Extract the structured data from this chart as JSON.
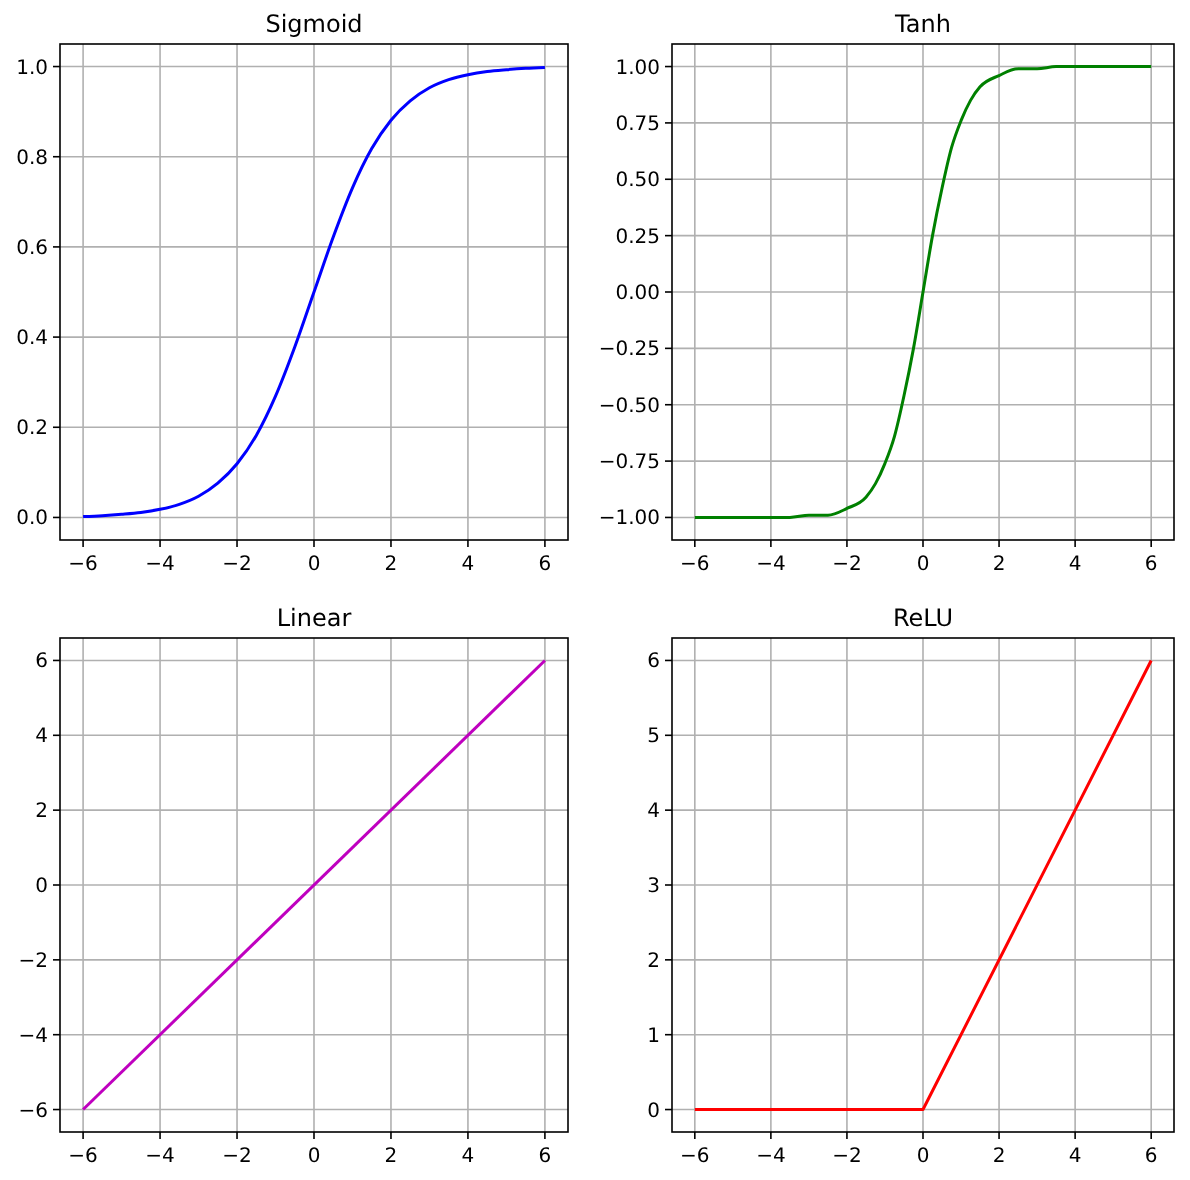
{
  "chart_data": [
    {
      "type": "line",
      "title": "Sigmoid",
      "x": [
        -6,
        -5.5,
        -5,
        -4.5,
        -4,
        -3.5,
        -3,
        -2.5,
        -2,
        -1.5,
        -1,
        -0.5,
        0,
        0.5,
        1,
        1.5,
        2,
        2.5,
        3,
        3.5,
        4,
        4.5,
        5,
        5.5,
        6
      ],
      "series": [
        {
          "color": "#0000ff",
          "values": [
            0.002,
            0.004,
            0.007,
            0.011,
            0.018,
            0.029,
            0.047,
            0.076,
            0.119,
            0.182,
            0.269,
            0.378,
            0.5,
            0.622,
            0.731,
            0.818,
            0.881,
            0.924,
            0.953,
            0.971,
            0.982,
            0.989,
            0.993,
            0.996,
            0.998
          ]
        }
      ],
      "xlim": [
        -6.6,
        6.6
      ],
      "ylim": [
        -0.05,
        1.05
      ],
      "grid": true,
      "xticks": [
        {
          "value": -6,
          "label": "−6"
        },
        {
          "value": -4,
          "label": "−4"
        },
        {
          "value": -2,
          "label": "−2"
        },
        0,
        2,
        4,
        6
      ],
      "yticks": [
        {
          "value": 0,
          "label": "0.0"
        },
        {
          "value": 0.2,
          "label": "0.2"
        },
        {
          "value": 0.4,
          "label": "0.4"
        },
        {
          "value": 0.6,
          "label": "0.6"
        },
        {
          "value": 0.8,
          "label": "0.8"
        },
        {
          "value": 1,
          "label": "1.0"
        }
      ]
    },
    {
      "type": "line",
      "title": "Tanh",
      "x": [
        -6,
        -5,
        -4,
        -3.5,
        -3,
        -2.5,
        -2,
        -1.5,
        -1.25,
        -1,
        -0.75,
        -0.5,
        -0.25,
        0,
        0.25,
        0.5,
        0.75,
        1,
        1.25,
        1.5,
        2,
        2.5,
        3,
        3.5,
        4,
        5,
        6
      ],
      "series": [
        {
          "color": "#008000",
          "values": [
            -1,
            -1,
            -1,
            -1,
            -0.99,
            -0.99,
            -0.96,
            -0.91,
            -0.85,
            -0.76,
            -0.64,
            -0.46,
            -0.25,
            0,
            0.25,
            0.46,
            0.64,
            0.76,
            0.85,
            0.91,
            0.96,
            0.99,
            0.99,
            1,
            1,
            1,
            1
          ]
        }
      ],
      "xlim": [
        -6.6,
        6.6
      ],
      "ylim": [
        -1.1,
        1.1
      ],
      "grid": true,
      "xticks": [
        {
          "value": -6,
          "label": "−6"
        },
        {
          "value": -4,
          "label": "−4"
        },
        {
          "value": -2,
          "label": "−2"
        },
        0,
        2,
        4,
        6
      ],
      "yticks": [
        {
          "value": -1,
          "label": "−1.00"
        },
        {
          "value": -0.75,
          "label": "−0.75"
        },
        {
          "value": -0.5,
          "label": "−0.50"
        },
        {
          "value": -0.25,
          "label": "−0.25"
        },
        {
          "value": 0,
          "label": "0.00"
        },
        {
          "value": 0.25,
          "label": "0.25"
        },
        {
          "value": 0.5,
          "label": "0.50"
        },
        {
          "value": 0.75,
          "label": "0.75"
        },
        {
          "value": 1,
          "label": "1.00"
        }
      ]
    },
    {
      "type": "line",
      "title": "Linear",
      "x": [
        -6,
        6
      ],
      "series": [
        {
          "color": "#bf00bf",
          "values": [
            -6,
            6
          ]
        }
      ],
      "xlim": [
        -6.6,
        6.6
      ],
      "ylim": [
        -6.6,
        6.6
      ],
      "grid": true,
      "xticks": [
        {
          "value": -6,
          "label": "−6"
        },
        {
          "value": -4,
          "label": "−4"
        },
        {
          "value": -2,
          "label": "−2"
        },
        0,
        2,
        4,
        6
      ],
      "yticks": [
        {
          "value": -6,
          "label": "−6"
        },
        {
          "value": -4,
          "label": "−4"
        },
        {
          "value": -2,
          "label": "−2"
        },
        0,
        2,
        4,
        6
      ]
    },
    {
      "type": "line",
      "title": "ReLU",
      "x": [
        -6,
        0,
        6
      ],
      "series": [
        {
          "color": "#ff0000",
          "values": [
            0,
            0,
            6
          ]
        }
      ],
      "xlim": [
        -6.6,
        6.6
      ],
      "ylim": [
        -0.3,
        6.3
      ],
      "grid": true,
      "xticks": [
        {
          "value": -6,
          "label": "−6"
        },
        {
          "value": -4,
          "label": "−4"
        },
        {
          "value": -2,
          "label": "−2"
        },
        0,
        2,
        4,
        6
      ],
      "yticks": [
        0,
        1,
        2,
        3,
        4,
        5,
        6
      ]
    }
  ]
}
